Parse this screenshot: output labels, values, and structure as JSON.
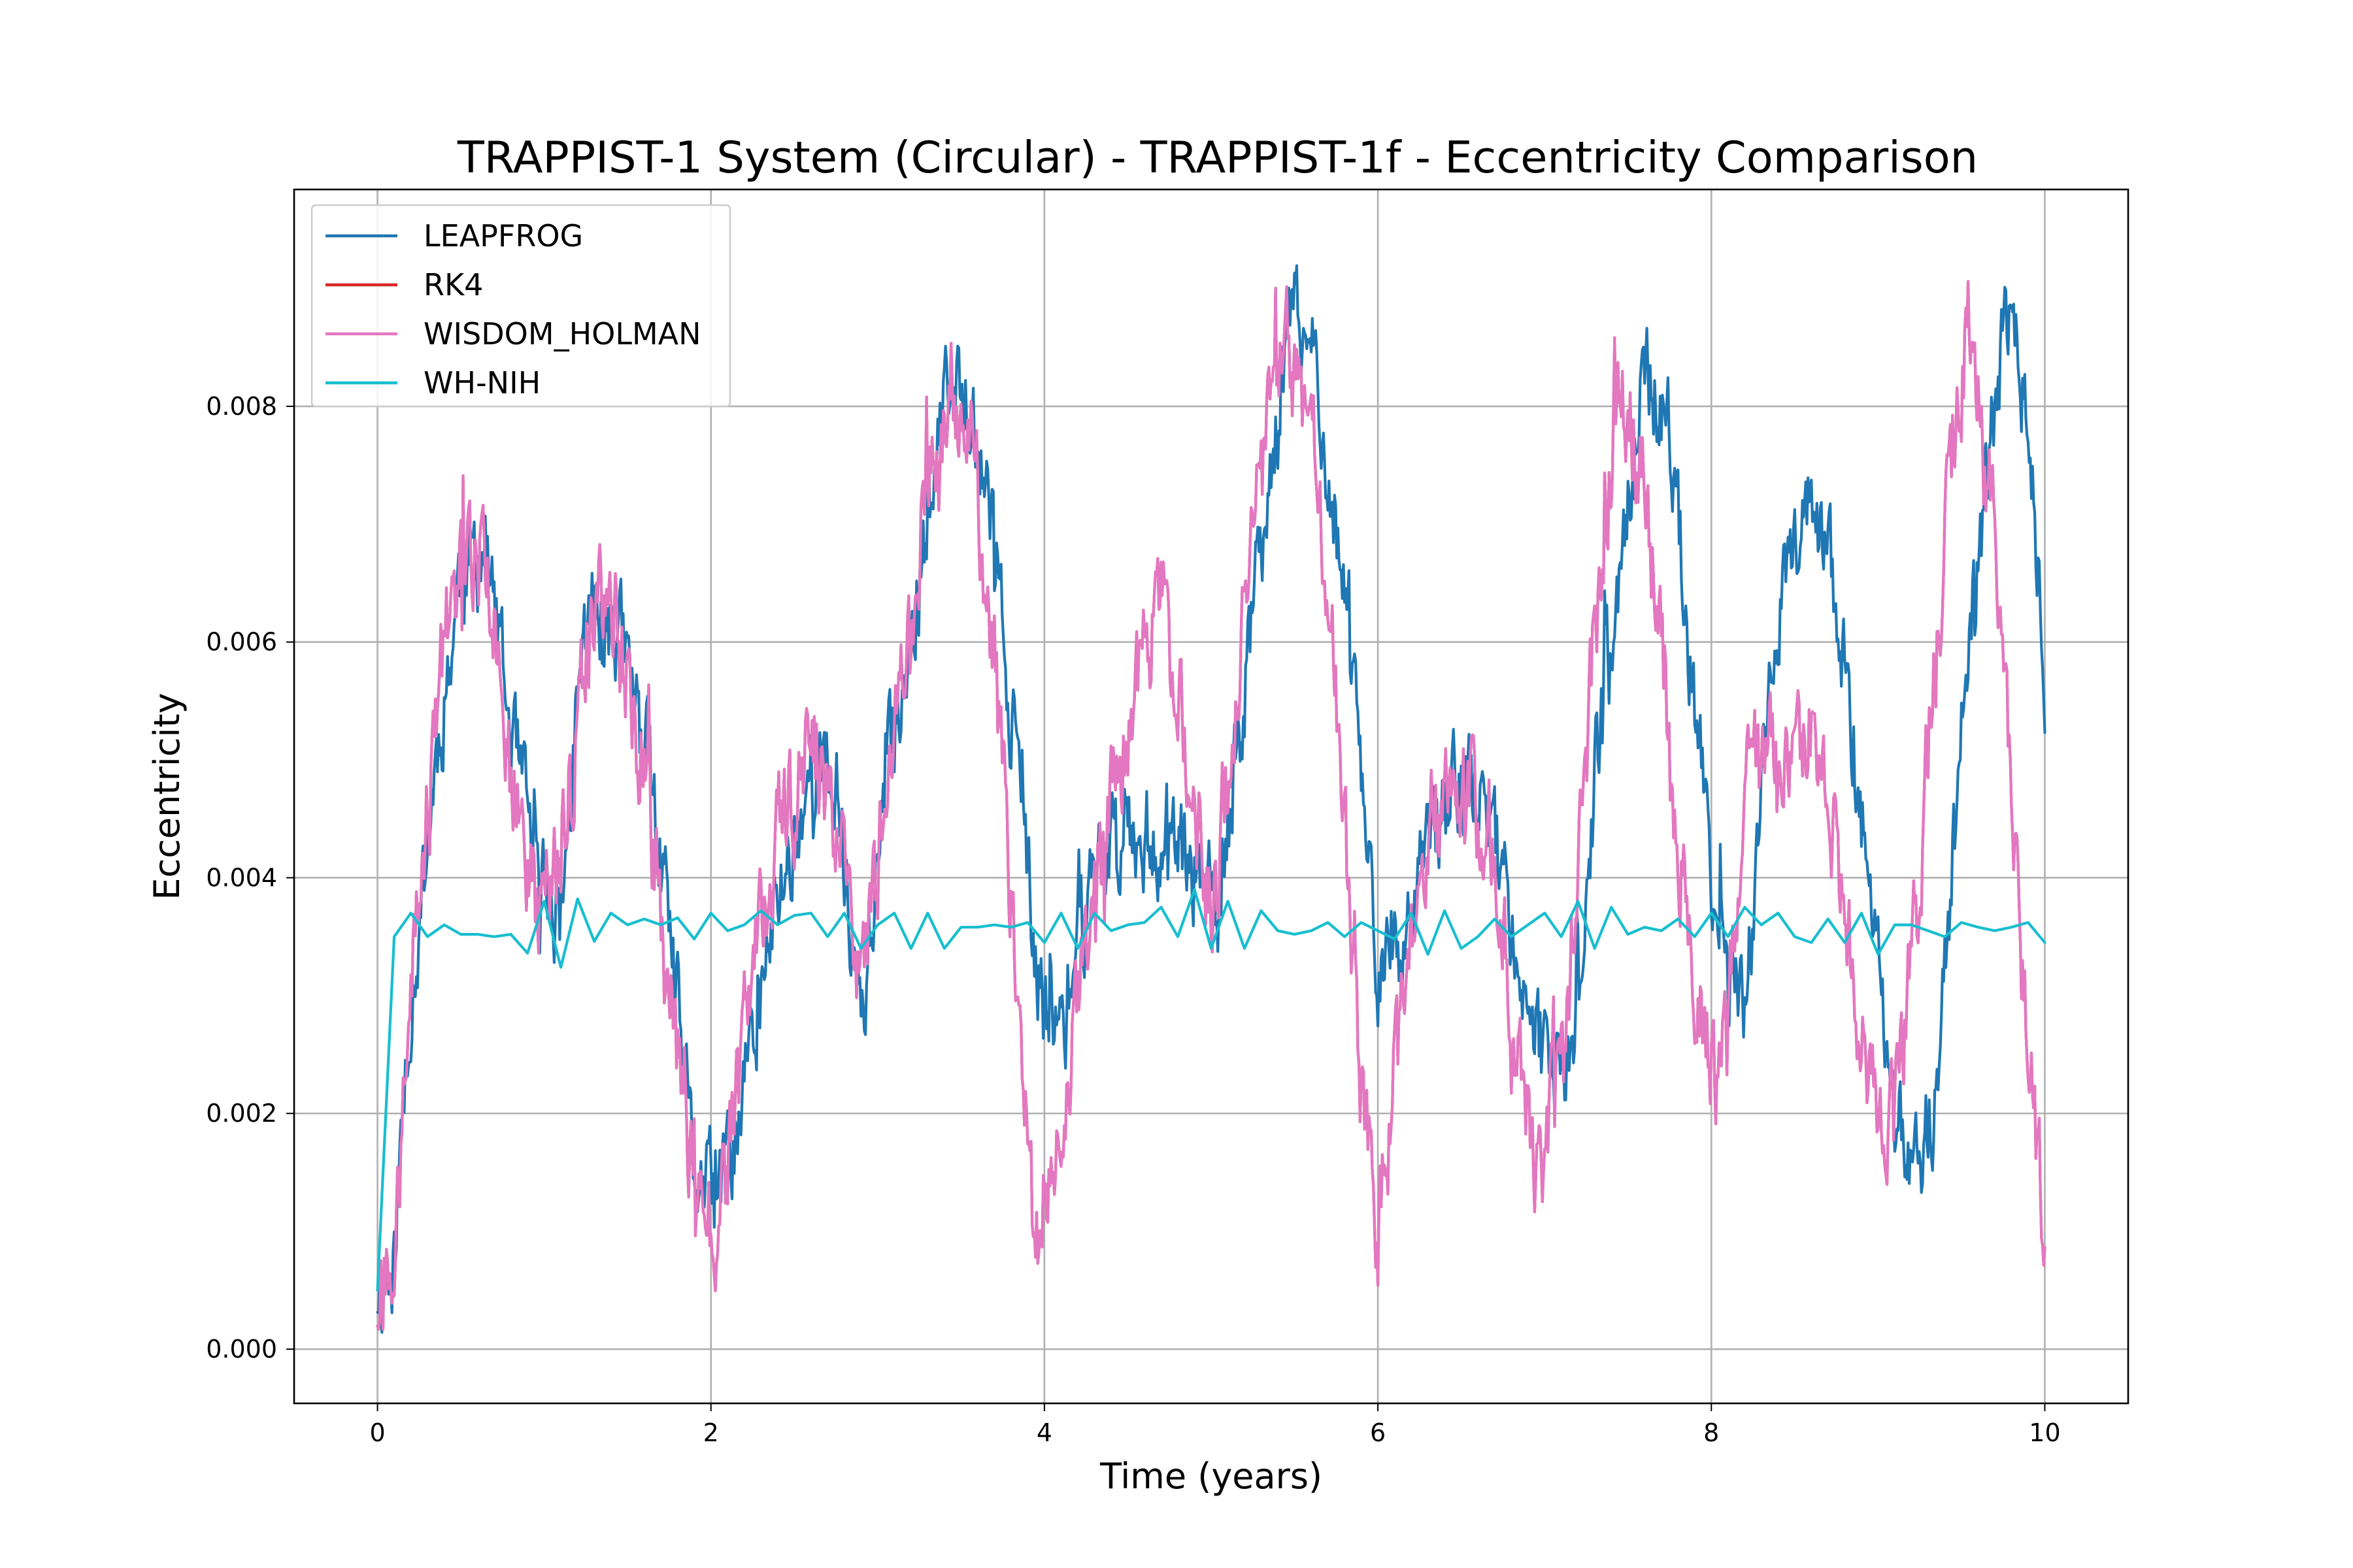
{
  "chart_data": {
    "type": "line",
    "title": "TRAPPIST-1 System (Circular) - TRAPPIST-1f - Eccentricity Comparison",
    "xlabel": "Time (years)",
    "ylabel": "Eccentricity",
    "xlim": [
      -0.5,
      10.5
    ],
    "ylim": [
      -0.00046,
      0.00984
    ],
    "xticks": [
      0,
      2,
      4,
      6,
      8,
      10
    ],
    "xtick_labels": [
      "0",
      "2",
      "4",
      "6",
      "8",
      "10"
    ],
    "yticks": [
      0.0,
      0.002,
      0.004,
      0.006,
      0.008
    ],
    "ytick_labels": [
      "0.000",
      "0.002",
      "0.004",
      "0.006",
      "0.008"
    ],
    "grid": true,
    "legend_position": "top-left",
    "series": [
      {
        "name": "LEAPFROG",
        "color": "#1f77b4",
        "noise": 0.00045,
        "x": [
          0,
          0.1,
          0.2,
          0.35,
          0.5,
          0.65,
          0.8,
          0.95,
          1.1,
          1.25,
          1.4,
          1.6,
          1.75,
          1.9,
          2.05,
          2.2,
          2.4,
          2.6,
          2.75,
          2.9,
          3.05,
          3.25,
          3.4,
          3.55,
          3.7,
          3.85,
          3.95,
          4.1,
          4.3,
          4.5,
          4.7,
          4.9,
          5.05,
          5.2,
          5.35,
          5.5,
          5.65,
          5.85,
          6.0,
          6.15,
          6.3,
          6.5,
          6.7,
          6.85,
          7.0,
          7.15,
          7.3,
          7.45,
          7.6,
          7.75,
          7.9,
          8.05,
          8.2,
          8.35,
          8.45,
          8.6,
          8.75,
          8.9,
          9.05,
          9.2,
          9.35,
          9.5,
          9.65,
          9.8,
          9.9,
          10.0
        ],
        "y": [
          0.0005,
          0.0008,
          0.003,
          0.005,
          0.0066,
          0.0068,
          0.0052,
          0.0041,
          0.0037,
          0.0062,
          0.0063,
          0.0052,
          0.0035,
          0.0015,
          0.0012,
          0.0022,
          0.0038,
          0.0049,
          0.0048,
          0.0028,
          0.0048,
          0.0066,
          0.008,
          0.0082,
          0.0068,
          0.0048,
          0.0031,
          0.0027,
          0.0041,
          0.0045,
          0.0043,
          0.0041,
          0.0036,
          0.0056,
          0.0075,
          0.0088,
          0.0082,
          0.0058,
          0.0033,
          0.0032,
          0.0042,
          0.0049,
          0.0044,
          0.0033,
          0.0024,
          0.0022,
          0.0048,
          0.0066,
          0.0083,
          0.0077,
          0.0055,
          0.0034,
          0.0028,
          0.0057,
          0.0068,
          0.0071,
          0.0063,
          0.0045,
          0.0025,
          0.0014,
          0.0021,
          0.0052,
          0.0075,
          0.009,
          0.0078,
          0.0057
        ]
      },
      {
        "name": "RK4",
        "color": "#d62728",
        "noise": 0.0005,
        "x": [
          0,
          0.1,
          0.2,
          0.35,
          0.5,
          0.65,
          0.8,
          0.95,
          1.1,
          1.25,
          1.4,
          1.6,
          1.75,
          1.9,
          2.05,
          2.2,
          2.4,
          2.6,
          2.75,
          2.9,
          3.1,
          3.3,
          3.45,
          3.6,
          3.75,
          3.85,
          3.95,
          4.1,
          4.3,
          4.5,
          4.7,
          4.85,
          5.0,
          5.15,
          5.3,
          5.45,
          5.6,
          5.75,
          5.9,
          6.0,
          6.15,
          6.3,
          6.5,
          6.65,
          6.8,
          6.95,
          7.1,
          7.3,
          7.45,
          7.6,
          7.75,
          7.9,
          8.05,
          8.2,
          8.35,
          8.5,
          8.65,
          8.8,
          8.95,
          9.1,
          9.25,
          9.4,
          9.55,
          9.7,
          9.85,
          10.0
        ],
        "y": [
          0.0004,
          0.0009,
          0.0032,
          0.0055,
          0.0068,
          0.0066,
          0.0049,
          0.0037,
          0.0041,
          0.0061,
          0.0064,
          0.0049,
          0.003,
          0.0012,
          0.001,
          0.0027,
          0.0043,
          0.0052,
          0.0044,
          0.0031,
          0.0051,
          0.0074,
          0.0083,
          0.0073,
          0.0049,
          0.0026,
          0.0008,
          0.0021,
          0.0038,
          0.0053,
          0.0063,
          0.0052,
          0.0036,
          0.0055,
          0.0074,
          0.0085,
          0.0078,
          0.0056,
          0.0022,
          0.0011,
          0.0029,
          0.0045,
          0.0047,
          0.0045,
          0.0031,
          0.0014,
          0.0023,
          0.0061,
          0.0082,
          0.0074,
          0.0052,
          0.003,
          0.0021,
          0.0046,
          0.0051,
          0.0053,
          0.0049,
          0.0038,
          0.0022,
          0.0018,
          0.0041,
          0.0069,
          0.0088,
          0.0069,
          0.0035,
          0.0008
        ]
      },
      {
        "name": "WISDOM_HOLMAN",
        "color": "#e377c2",
        "noise": 0.0005,
        "x": [
          0,
          0.1,
          0.2,
          0.35,
          0.5,
          0.65,
          0.8,
          0.95,
          1.1,
          1.25,
          1.4,
          1.6,
          1.75,
          1.9,
          2.05,
          2.2,
          2.4,
          2.6,
          2.75,
          2.9,
          3.1,
          3.3,
          3.45,
          3.6,
          3.75,
          3.85,
          3.95,
          4.1,
          4.3,
          4.5,
          4.7,
          4.85,
          5.0,
          5.15,
          5.3,
          5.45,
          5.6,
          5.75,
          5.9,
          6.0,
          6.15,
          6.3,
          6.5,
          6.65,
          6.8,
          6.95,
          7.1,
          7.3,
          7.45,
          7.6,
          7.75,
          7.9,
          8.05,
          8.2,
          8.35,
          8.5,
          8.65,
          8.8,
          8.95,
          9.1,
          9.25,
          9.4,
          9.55,
          9.7,
          9.85,
          10.0
        ],
        "y": [
          0.0004,
          0.0009,
          0.0032,
          0.0055,
          0.0068,
          0.0066,
          0.0049,
          0.0037,
          0.0041,
          0.0061,
          0.0064,
          0.0049,
          0.003,
          0.0012,
          0.001,
          0.0027,
          0.0043,
          0.0052,
          0.0044,
          0.0031,
          0.0051,
          0.0074,
          0.0083,
          0.0073,
          0.0049,
          0.0026,
          0.0008,
          0.0021,
          0.0038,
          0.0053,
          0.0063,
          0.0052,
          0.0036,
          0.0055,
          0.0074,
          0.0085,
          0.0078,
          0.0056,
          0.0022,
          0.0011,
          0.0029,
          0.0045,
          0.0047,
          0.0045,
          0.0031,
          0.0014,
          0.0023,
          0.0061,
          0.0082,
          0.0074,
          0.0052,
          0.003,
          0.0021,
          0.0046,
          0.0051,
          0.0053,
          0.0049,
          0.0038,
          0.0022,
          0.0018,
          0.0041,
          0.0069,
          0.0088,
          0.0069,
          0.0035,
          0.0008
        ]
      },
      {
        "name": "WH-NIH",
        "color": "#17becf",
        "noise": 0,
        "x": [
          0,
          0.1,
          0.2,
          0.3,
          0.4,
          0.5,
          0.6,
          0.7,
          0.8,
          0.9,
          1.0,
          1.1,
          1.2,
          1.3,
          1.4,
          1.5,
          1.6,
          1.7,
          1.8,
          1.9,
          2.0,
          2.1,
          2.2,
          2.3,
          2.4,
          2.5,
          2.6,
          2.7,
          2.8,
          2.9,
          3.0,
          3.1,
          3.2,
          3.3,
          3.4,
          3.5,
          3.6,
          3.7,
          3.8,
          3.9,
          4.0,
          4.1,
          4.2,
          4.3,
          4.4,
          4.5,
          4.6,
          4.7,
          4.8,
          4.9,
          5.0,
          5.1,
          5.2,
          5.3,
          5.4,
          5.5,
          5.6,
          5.7,
          5.8,
          5.9,
          6.0,
          6.1,
          6.2,
          6.3,
          6.4,
          6.5,
          6.6,
          6.7,
          6.8,
          6.9,
          7.0,
          7.1,
          7.2,
          7.3,
          7.4,
          7.5,
          7.6,
          7.7,
          7.8,
          7.9,
          8.0,
          8.1,
          8.2,
          8.3,
          8.4,
          8.5,
          8.6,
          8.7,
          8.8,
          8.9,
          9.0,
          9.1,
          9.2,
          9.3,
          9.4,
          9.5,
          9.6,
          9.7,
          9.8,
          9.9,
          10.0
        ],
        "y": [
          0.0005,
          0.0035,
          0.0037,
          0.0035,
          0.0036,
          0.00352,
          0.00352,
          0.0035,
          0.00352,
          0.00336,
          0.0038,
          0.00324,
          0.00382,
          0.00346,
          0.0037,
          0.0036,
          0.00365,
          0.0036,
          0.00366,
          0.00348,
          0.0037,
          0.00355,
          0.0036,
          0.00372,
          0.0036,
          0.00368,
          0.0037,
          0.0035,
          0.0037,
          0.0034,
          0.0036,
          0.0037,
          0.0034,
          0.0037,
          0.0034,
          0.00358,
          0.00358,
          0.0036,
          0.00358,
          0.00362,
          0.00345,
          0.0037,
          0.0034,
          0.0037,
          0.00355,
          0.0036,
          0.00362,
          0.00375,
          0.0035,
          0.0039,
          0.0034,
          0.0038,
          0.0034,
          0.00372,
          0.00355,
          0.00352,
          0.00355,
          0.00362,
          0.0035,
          0.00362,
          0.00355,
          0.00348,
          0.0037,
          0.00335,
          0.00372,
          0.0034,
          0.0035,
          0.00365,
          0.0035,
          0.0036,
          0.0037,
          0.0035,
          0.0038,
          0.0034,
          0.00375,
          0.00352,
          0.00358,
          0.00355,
          0.00365,
          0.0035,
          0.0037,
          0.0035,
          0.00375,
          0.0036,
          0.0037,
          0.0035,
          0.00345,
          0.00365,
          0.00345,
          0.0037,
          0.00335,
          0.0036,
          0.0036,
          0.00355,
          0.0035,
          0.00362,
          0.00358,
          0.00355,
          0.00358,
          0.00362,
          0.00345
        ]
      }
    ]
  }
}
